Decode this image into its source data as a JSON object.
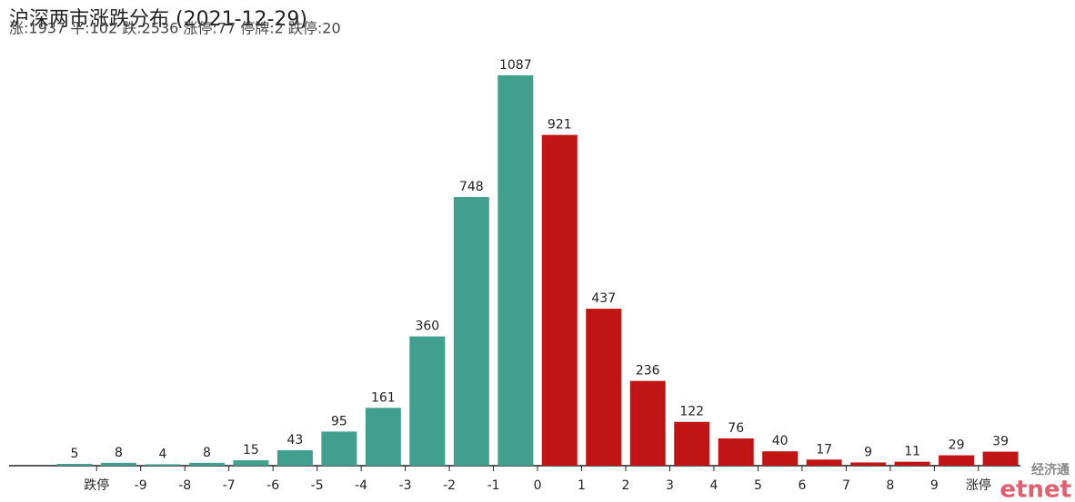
{
  "chart_data": {
    "type": "bar",
    "title": "沪深两市涨跌分布 (2021-12-29)",
    "subtitle": "涨:1937 平:102 跌:2536 涨停:77 停牌:2 跌停:20",
    "categories": [
      null,
      null,
      null,
      null,
      null,
      null,
      null,
      null,
      null,
      null,
      null,
      null,
      null,
      null,
      null,
      null,
      null,
      null,
      null,
      null,
      null,
      null
    ],
    "values": [
      5,
      8,
      4,
      8,
      15,
      43,
      95,
      161,
      360,
      748,
      1087,
      921,
      437,
      236,
      122,
      76,
      40,
      17,
      9,
      11,
      29,
      39
    ],
    "colors": [
      "#41a08d",
      "#41a08d",
      "#41a08d",
      "#41a08d",
      "#41a08d",
      "#41a08d",
      "#41a08d",
      "#41a08d",
      "#41a08d",
      "#41a08d",
      "#41a08d",
      "#c11515",
      "#c11515",
      "#c11515",
      "#c11515",
      "#c11515",
      "#c11515",
      "#c11515",
      "#c11515",
      "#c11515",
      "#c11515",
      "#c11515"
    ],
    "xticks": [
      "跌停",
      "-9",
      "-8",
      "-7",
      "-6",
      "-5",
      "-4",
      "-3",
      "-2",
      "-1",
      "0",
      "1",
      "2",
      "3",
      "4",
      "5",
      "6",
      "7",
      "8",
      "9",
      "涨停"
    ],
    "ylim": [
      0,
      1150
    ],
    "watermark": {
      "top": "经济通",
      "bottom": "etnet"
    }
  }
}
